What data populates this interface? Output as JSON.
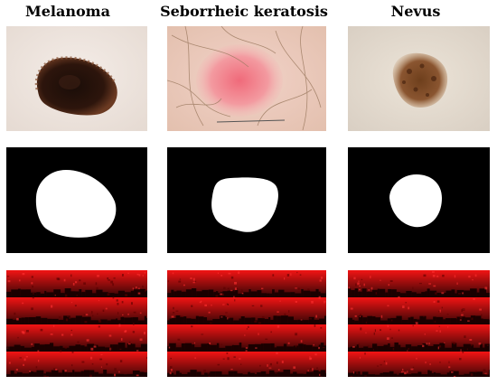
{
  "columns": [
    {
      "label": "Melanoma"
    },
    {
      "label": "Seborrheic keratosis"
    },
    {
      "label": "Nevus"
    }
  ],
  "rows": [
    "dermoscopic-image",
    "segmentation-mask",
    "texture-map"
  ],
  "colors": {
    "mask_background": "#000000",
    "mask_foreground": "#ffffff",
    "texture_red": "#e01010",
    "texture_dark": "#3a0000"
  }
}
